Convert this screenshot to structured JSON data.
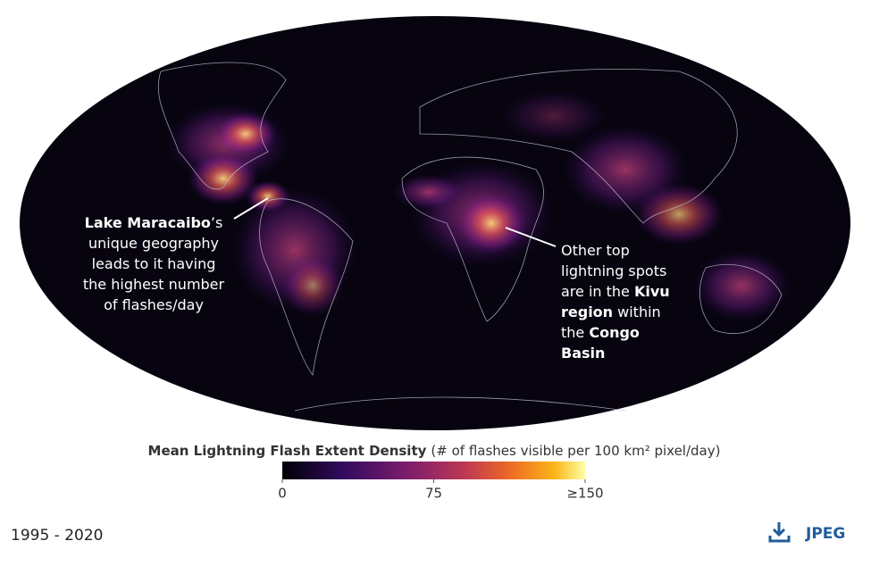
{
  "map": {
    "annotations": [
      {
        "lines": [
          [
            {
              "text": "Lake Maracaibo",
              "bold": true
            },
            {
              "text": "’s",
              "bold": false
            }
          ],
          [
            {
              "text": "unique geography",
              "bold": false
            }
          ],
          [
            {
              "text": "leads to it having",
              "bold": false
            }
          ],
          [
            {
              "text": "the highest number",
              "bold": false
            }
          ],
          [
            {
              "text": "of flashes/day",
              "bold": false
            }
          ]
        ]
      },
      {
        "lines": [
          [
            {
              "text": "Other top",
              "bold": false
            }
          ],
          [
            {
              "text": "lightning spots",
              "bold": false
            }
          ],
          [
            {
              "text": "are in the ",
              "bold": false
            },
            {
              "text": "Kivu",
              "bold": true
            }
          ],
          [
            {
              "text": "region",
              "bold": true
            },
            {
              "text": " within",
              "bold": false
            }
          ],
          [
            {
              "text": "the ",
              "bold": false
            },
            {
              "text": "Congo",
              "bold": true
            }
          ],
          [
            {
              "text": "Basin",
              "bold": true
            }
          ]
        ]
      }
    ]
  },
  "colorbar": {
    "title": "Mean Lightning Flash Extent Density",
    "subtitle": "(# of flashes visible per 100 km² pixel/day)",
    "range": [
      0,
      150
    ],
    "ticks": [
      0,
      75,
      {
        "value": 150,
        "label": "≥150"
      }
    ]
  },
  "footer": {
    "date_range": "1995 - 2020",
    "download": "JPEG"
  }
}
